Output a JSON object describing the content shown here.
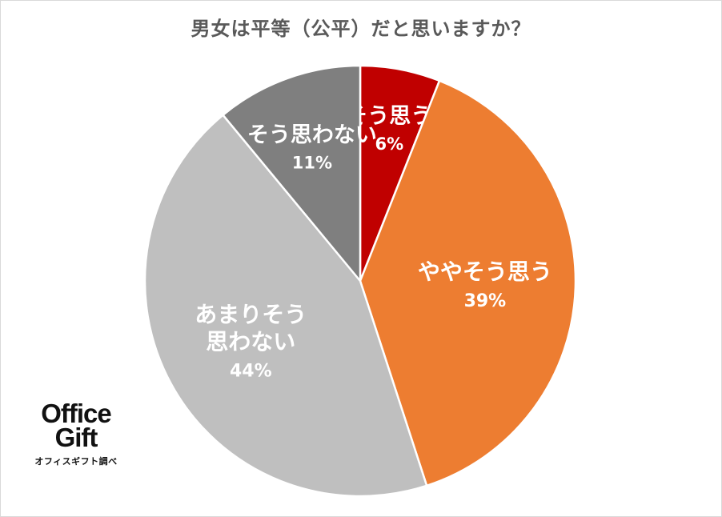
{
  "chart_data": {
    "type": "pie",
    "title": "男女は平等（公平）だと思いますか？",
    "categories": [
      "そう思う",
      "ややそう思う",
      "あまりそう思わない",
      "そう思わない"
    ],
    "values": [
      6,
      39,
      44,
      11
    ],
    "unit": "%",
    "colors": [
      "#c00000",
      "#ed7d31",
      "#bfbfbf",
      "#7f7f7f"
    ],
    "start_angle_deg": 0,
    "direction": "clockwise",
    "label_lines": [
      [
        "そう思う"
      ],
      [
        "ややそう思う"
      ],
      [
        "あまりそう",
        "思わない"
      ],
      [
        "そう思わない"
      ]
    ],
    "value_labels": [
      "6%",
      "39%",
      "44%",
      "11%"
    ],
    "legend": "none"
  },
  "logo": {
    "line1": "Office",
    "line2": "Gift",
    "caption": "オフィスギフト調べ"
  }
}
